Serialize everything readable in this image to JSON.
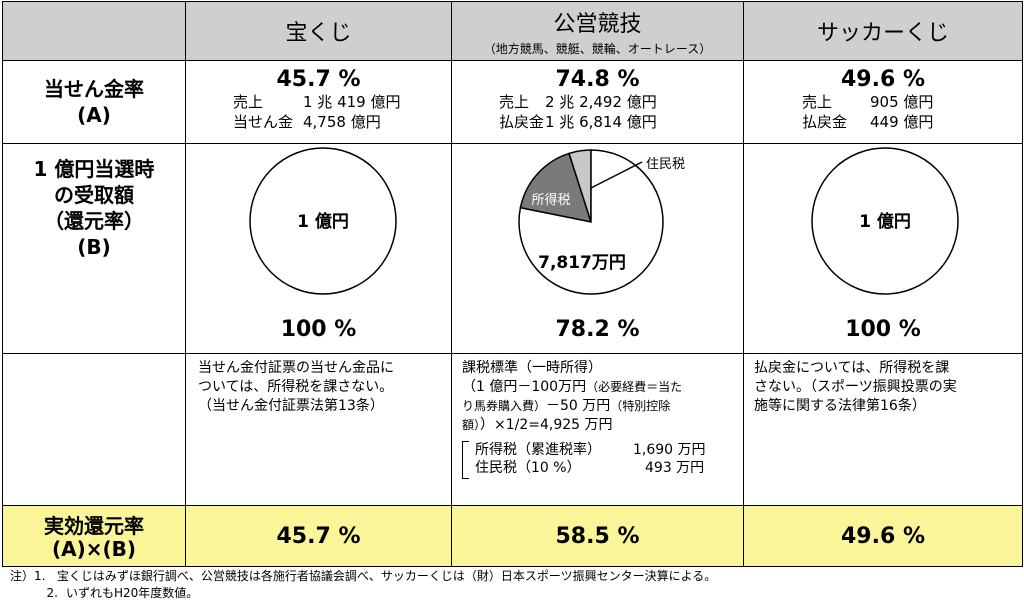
{
  "header": {
    "col1": "宝くじ",
    "col2": "公営競技",
    "col2_sub": "（地方競馬、競艇、競輪、オートレース）",
    "col3": "サッカーくじ"
  },
  "row_payout_rate": {
    "label": "当せん金率",
    "label_sub": "(A)",
    "col1": {
      "pct": "45.7 %",
      "l1k": "売上",
      "l1v": "1 兆 419 億円",
      "l2k": "当せん金",
      "l2v": "4,758 億円"
    },
    "col2": {
      "pct": "74.8 %",
      "l1k": "売上",
      "l1v": "2 兆 2,492 億円",
      "l2k": "払戻金",
      "l2v": "1 兆 6,814 億円"
    },
    "col3": {
      "pct": "49.6 %",
      "l1k": "売上",
      "l1v": "905 億円",
      "l2k": "払戻金",
      "l2v": "449 億円"
    }
  },
  "row_receipt": {
    "label_l1": "1 億円当選時",
    "label_l2": "の受取額",
    "label_l3": "（還元率）",
    "label_sub": "(B)",
    "col1": {
      "circle_label": "1 億円",
      "pct": "100 %"
    },
    "col2": {
      "slice_income_tax": "所得税",
      "slice_resident_tax": "住民税",
      "remain_label": "7,817万円",
      "pct": "78.2 %"
    },
    "col3": {
      "circle_label": "1 億円",
      "pct": "100 %"
    }
  },
  "row_notes": {
    "col1_l1": "当せん金付証票の当せん金品に",
    "col1_l2": "ついては、所得税を課さない。",
    "col1_l3": "（当せん金付証票法第13条）",
    "col2_l1": "課税標準（一時所得）",
    "col2_l2a": "（1 億円－100万円",
    "col2_l2b": "（必要経費＝当た",
    "col2_l3a": "り馬券購入費）",
    "col2_l3b": "－50 万円",
    "col2_l3c": "（特別控除",
    "col2_l4a": "額）",
    "col2_l4b": "）×1/2=4,925 万円",
    "tax1_k": "所得税（累進税率）",
    "tax1_v": "1,690 万円",
    "tax2_k": "住民税（10 %）",
    "tax2_v": "493 万円",
    "col3_l1": "払戻金については、所得税を課",
    "col3_l2": "さない。（スポーツ振興投票の実",
    "col3_l3": "施等に関する法律第16条）"
  },
  "row_effective": {
    "label": "実効還元率",
    "label_sub": "(A)×(B)",
    "col1": "45.7 %",
    "col2": "58.5 %",
    "col3": "49.6 %"
  },
  "footer": {
    "prefix": "注）1.",
    "note1": "宝くじはみずほ銀行調べ、公営競技は各施行者協議会調べ、サッカーくじは（財）日本スポーツ振興センター決算による。",
    "num2": "2.",
    "note2": "いずれもH20年度数値。"
  },
  "chart_data": {
    "type": "pie",
    "categories": [
      "所得税",
      "住民税",
      "7,817万円"
    ],
    "values": [
      1690,
      493,
      7817
    ]
  }
}
